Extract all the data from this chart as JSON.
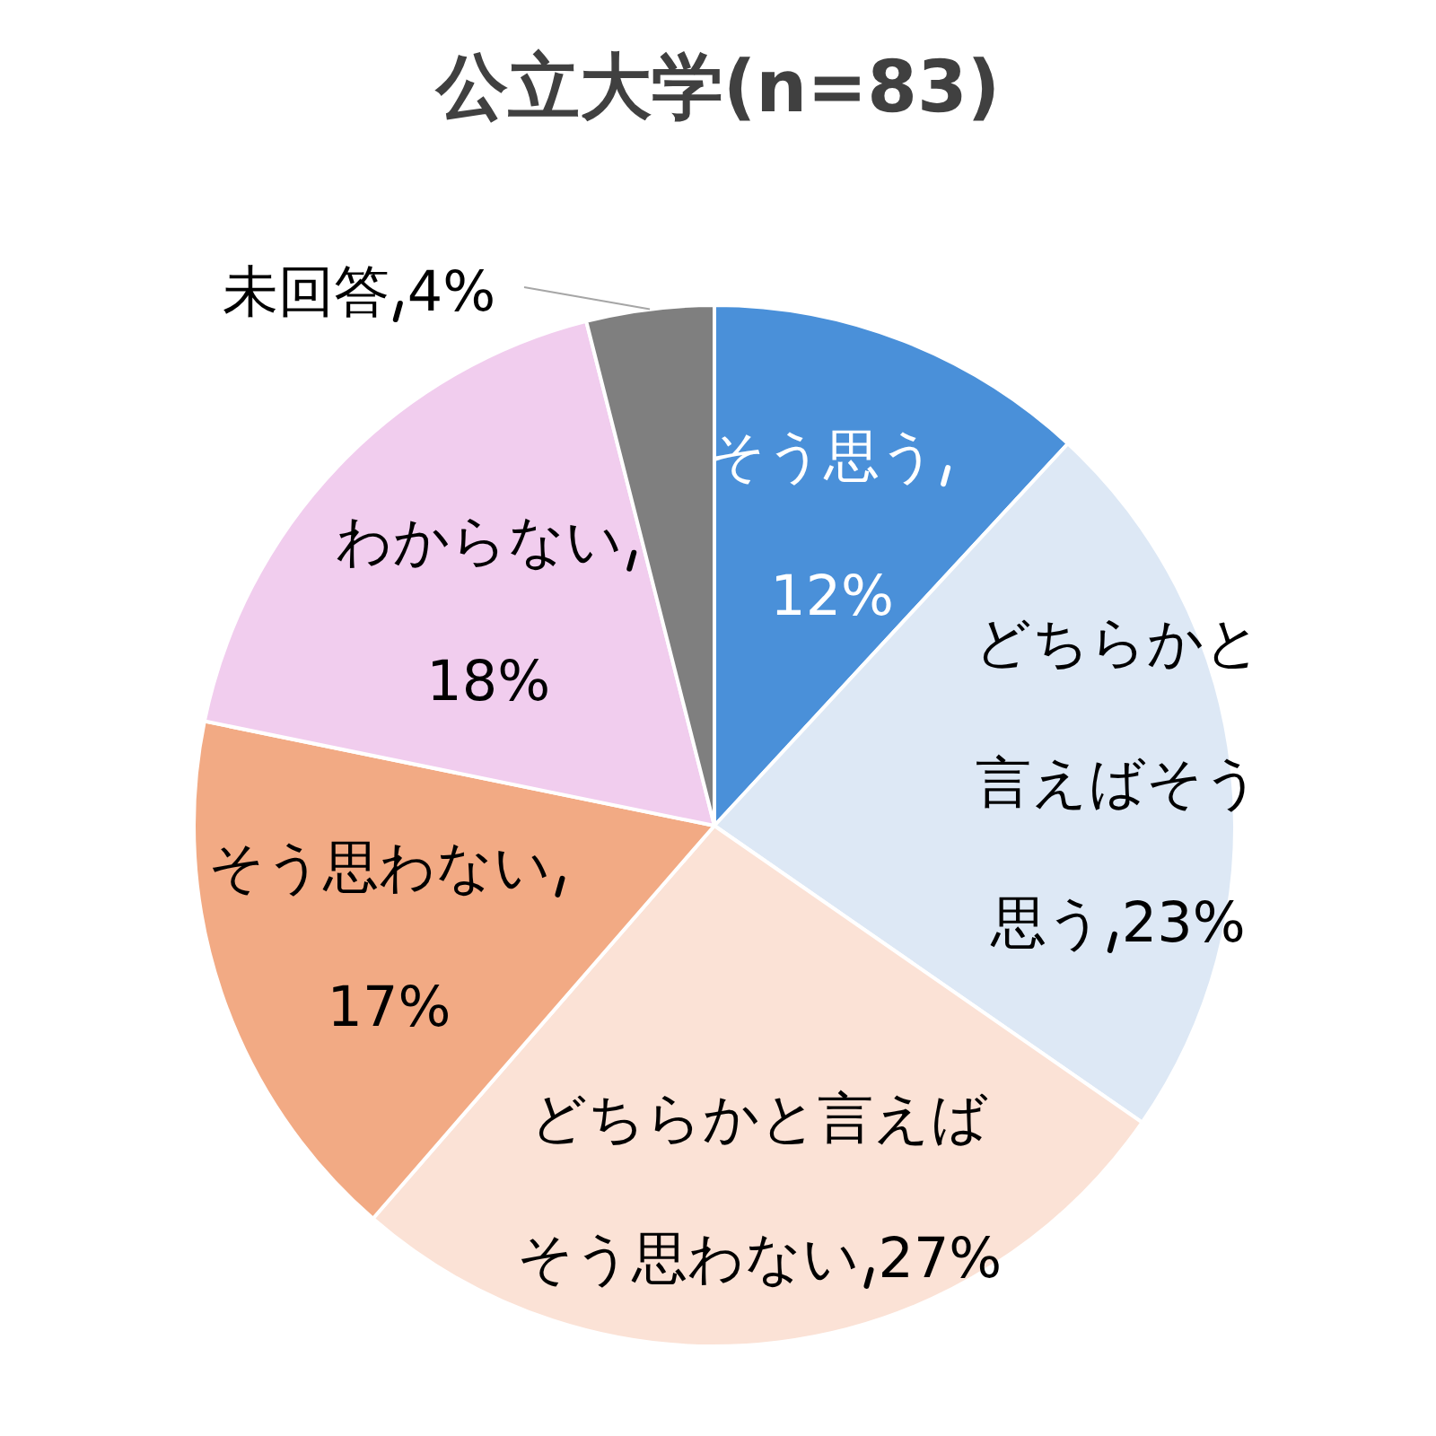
{
  "chart_data": {
    "type": "pie",
    "title": "公立大学(n=83)",
    "categories": [
      "そう思う",
      "どちらかと言えばそう思う",
      "どちらかと言えばそう思わない",
      "そう思わない",
      "わからない",
      "未回答"
    ],
    "values": [
      12,
      23,
      27,
      17,
      18,
      4
    ],
    "value_labels": [
      "12%",
      "23%",
      "27%",
      "17%",
      "18%",
      "4%"
    ],
    "colors": [
      "#4a90d9",
      "#dde8f5",
      "#fbe2d6",
      "#f2aa84",
      "#f1cdee",
      "#7f7f7f"
    ]
  }
}
